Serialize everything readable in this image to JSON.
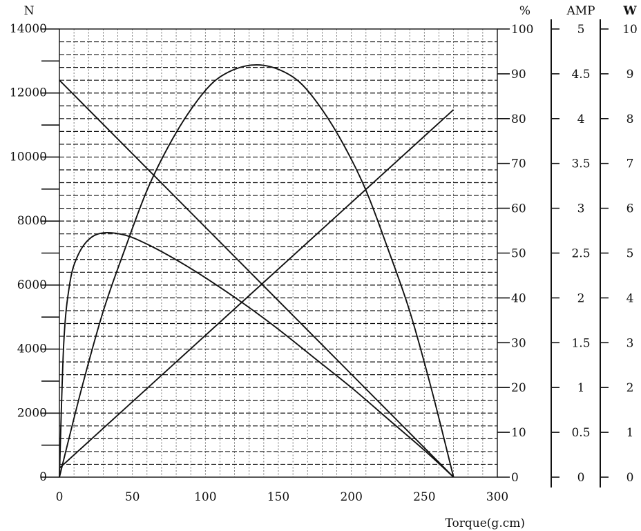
{
  "chart_data": {
    "type": "line",
    "xlabel": "Torque(g.cm)",
    "xlim": [
      0,
      300
    ],
    "x_ticks": [
      "0",
      "50",
      "100",
      "150",
      "200",
      "250",
      "300"
    ],
    "grid": true,
    "axes": {
      "speed": {
        "unit_label": "N",
        "ylim": [
          0,
          14000
        ],
        "ticks": [
          "0",
          "2000",
          "4000",
          "6000",
          "8000",
          "10000",
          "12000",
          "14000"
        ]
      },
      "efficiency": {
        "unit_label": "%",
        "ylim": [
          0,
          100
        ],
        "ticks": [
          "0",
          "10",
          "20",
          "30",
          "40",
          "50",
          "60",
          "70",
          "80",
          "90",
          "100"
        ]
      },
      "current": {
        "unit_label": "AMP",
        "ylim": [
          0,
          5
        ],
        "ticks": [
          "0",
          "0.5",
          "1",
          "1.5",
          "2",
          "2.5",
          "3",
          "3.5",
          "4",
          "4.5",
          "5"
        ]
      },
      "power": {
        "unit_label": "W",
        "ylim": [
          0,
          10
        ],
        "ticks": [
          "0",
          "1",
          "2",
          "3",
          "4",
          "5",
          "6",
          "7",
          "8",
          "9",
          "10"
        ]
      }
    },
    "series": [
      {
        "axis": "speed",
        "x": [
          0,
          270
        ],
        "y": [
          12400,
          0
        ]
      },
      {
        "axis": "current",
        "x": [
          0,
          270
        ],
        "y": [
          0.1,
          4.1
        ]
      },
      {
        "axis": "power",
        "x": [
          0,
          15,
          30,
          45,
          60,
          75,
          90,
          105,
          120,
          135,
          150,
          165,
          180,
          195,
          210,
          225,
          240,
          255,
          270
        ],
        "y": [
          0,
          1.95,
          3.7,
          5.1,
          6.4,
          7.4,
          8.2,
          8.8,
          9.1,
          9.2,
          9.1,
          8.8,
          8.2,
          7.4,
          6.4,
          5.1,
          3.7,
          1.95,
          0
        ]
      },
      {
        "axis": "efficiency",
        "x": [
          0,
          3,
          7,
          12,
          20,
          30,
          45,
          60,
          80,
          100,
          125,
          150,
          175,
          200,
          225,
          250,
          270
        ],
        "y": [
          0,
          30,
          43,
          49,
          53,
          54.5,
          54,
          52,
          48.5,
          44.5,
          39,
          33,
          26.5,
          20,
          13,
          6,
          0
        ]
      }
    ]
  }
}
